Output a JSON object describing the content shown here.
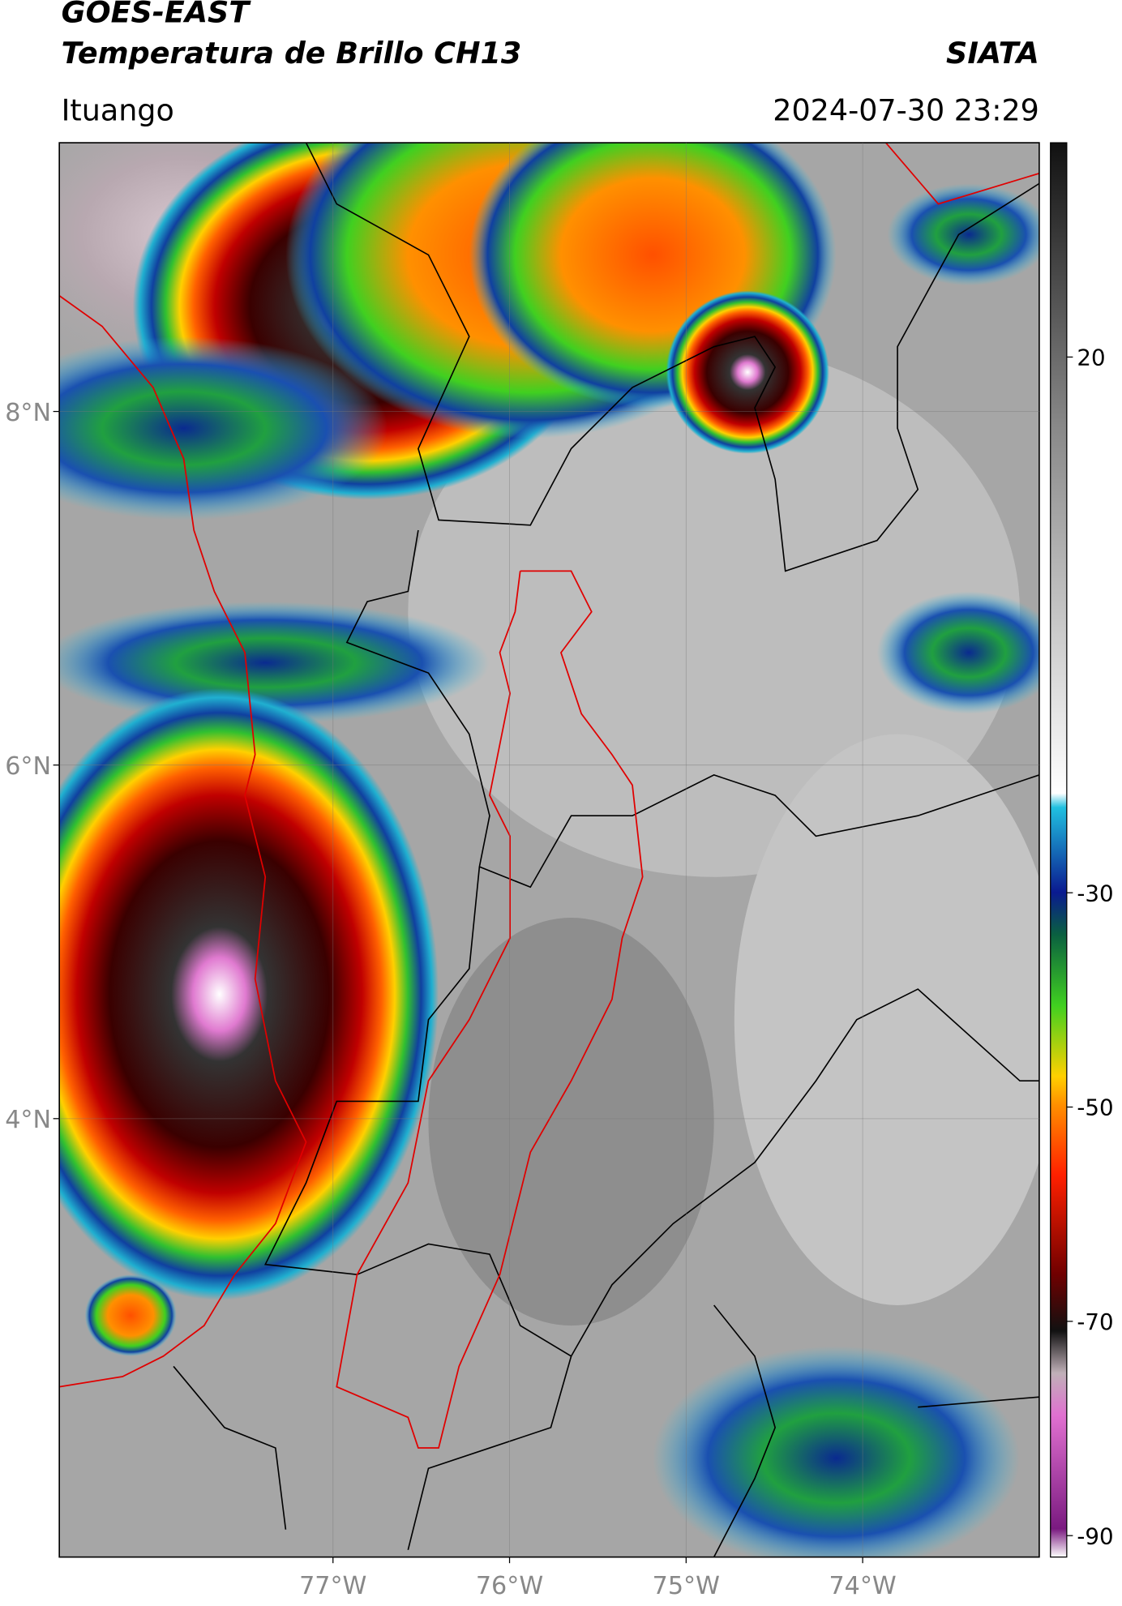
{
  "header": {
    "title": "GOES-EAST",
    "subtitle": "Temperatura de Brillo CH13",
    "source": "SIATA",
    "location": "Ituango",
    "datetime": "2024-07-30 23:29"
  },
  "map": {
    "xlim": [
      -78.55,
      -73.0
    ],
    "ylim": [
      1.52,
      9.52
    ],
    "xticks": [
      {
        "value": -77,
        "label": "77°W"
      },
      {
        "value": -76,
        "label": "76°W"
      },
      {
        "value": -75,
        "label": "75°W"
      },
      {
        "value": -74,
        "label": "74°W"
      }
    ],
    "yticks": [
      {
        "value": 8,
        "label": "8°N"
      },
      {
        "value": 6,
        "label": "6°N"
      },
      {
        "value": 4,
        "label": "4°N"
      }
    ]
  },
  "colorbar": {
    "lim": [
      -92,
      40
    ],
    "ticks": [
      20,
      -30,
      -50,
      -70,
      -90
    ]
  }
}
